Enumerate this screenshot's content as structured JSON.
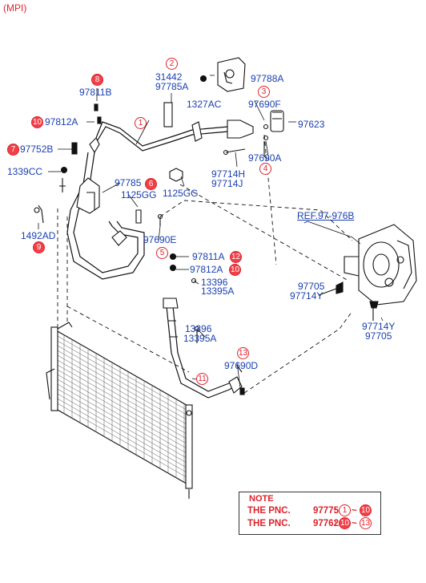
{
  "header": {
    "label": "(MPI)"
  },
  "parts": [
    {
      "id": "p1",
      "code": "31442"
    },
    {
      "id": "p2",
      "code": "97785A"
    },
    {
      "id": "p3",
      "code": "97788A"
    },
    {
      "id": "p4",
      "code": "97811B"
    },
    {
      "id": "p5",
      "code": "1327AC"
    },
    {
      "id": "p6",
      "code": "97690F"
    },
    {
      "id": "p7",
      "code": "97812A"
    },
    {
      "id": "p8",
      "code": "97623"
    },
    {
      "id": "p9",
      "code": "97752B"
    },
    {
      "id": "p10",
      "code": "97690A"
    },
    {
      "id": "p11",
      "code": "1339CC"
    },
    {
      "id": "p12",
      "code": "97714H"
    },
    {
      "id": "p13",
      "code": "97714J"
    },
    {
      "id": "p14",
      "code": "97785"
    },
    {
      "id": "p15",
      "code": "1125GG"
    },
    {
      "id": "p16",
      "code": "1125GG"
    },
    {
      "id": "p17",
      "code": "1492AD"
    },
    {
      "id": "p18",
      "code": "97690E"
    },
    {
      "id": "p19",
      "code": "97811A"
    },
    {
      "id": "p20",
      "code": "97812A"
    },
    {
      "id": "p21",
      "code": "13396"
    },
    {
      "id": "p22",
      "code": "13395A"
    },
    {
      "id": "p23",
      "code": "97705"
    },
    {
      "id": "p24",
      "code": "97714Y"
    },
    {
      "id": "p25",
      "code": "97714Y"
    },
    {
      "id": "p26",
      "code": "97705"
    },
    {
      "id": "p27",
      "code": "13396"
    },
    {
      "id": "p28",
      "code": "13395A"
    },
    {
      "id": "p29",
      "code": "97690D"
    }
  ],
  "reference": {
    "label": "REF.97-976B"
  },
  "callouts": [
    "1",
    "2",
    "3",
    "4",
    "5",
    "6",
    "7",
    "8",
    "9",
    "10",
    "11",
    "12",
    "13"
  ],
  "note": {
    "title": "NOTE",
    "rows": [
      {
        "prefix": "THE PNC.",
        "code": "97775A",
        "sep": ":",
        "from": "1",
        "dash": "~",
        "to": "10"
      },
      {
        "prefix": "THE PNC.",
        "code": "97762",
        "sep": ":",
        "from": "10",
        "dash": "~",
        "to": "13"
      }
    ]
  },
  "colors": {
    "label": "#1a3fb0",
    "callout": "#e0202a",
    "line": "#111111"
  }
}
